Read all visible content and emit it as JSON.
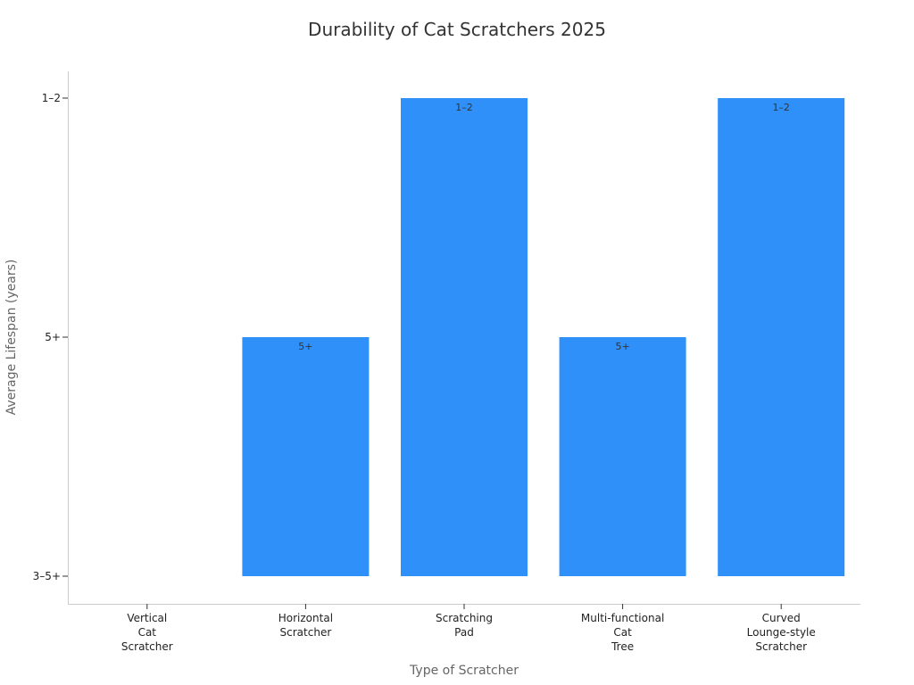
{
  "chart_data": {
    "type": "bar",
    "title": "Durability of Cat Scratchers 2025",
    "xlabel": "Type of Scratcher",
    "ylabel": "Average Lifespan (years)",
    "categories": [
      [
        "Vertical",
        "Cat",
        "Scratcher"
      ],
      [
        "Horizontal",
        "Scratcher"
      ],
      [
        "Scratching",
        "Pad"
      ],
      [
        "Multi-functional",
        "Cat",
        "Tree"
      ],
      [
        "Curved",
        "Lounge-style",
        "Scratcher"
      ]
    ],
    "y_categories": [
      "3–5+",
      "5+",
      "1–2"
    ],
    "values": [
      "3–5+",
      "5+",
      "1–2",
      "5+",
      "1–2"
    ],
    "data_labels": [
      "",
      "5+",
      "1–2",
      "5+",
      "1–2"
    ],
    "bar_color": "#2e90f8",
    "grid": false,
    "legend": "none"
  }
}
